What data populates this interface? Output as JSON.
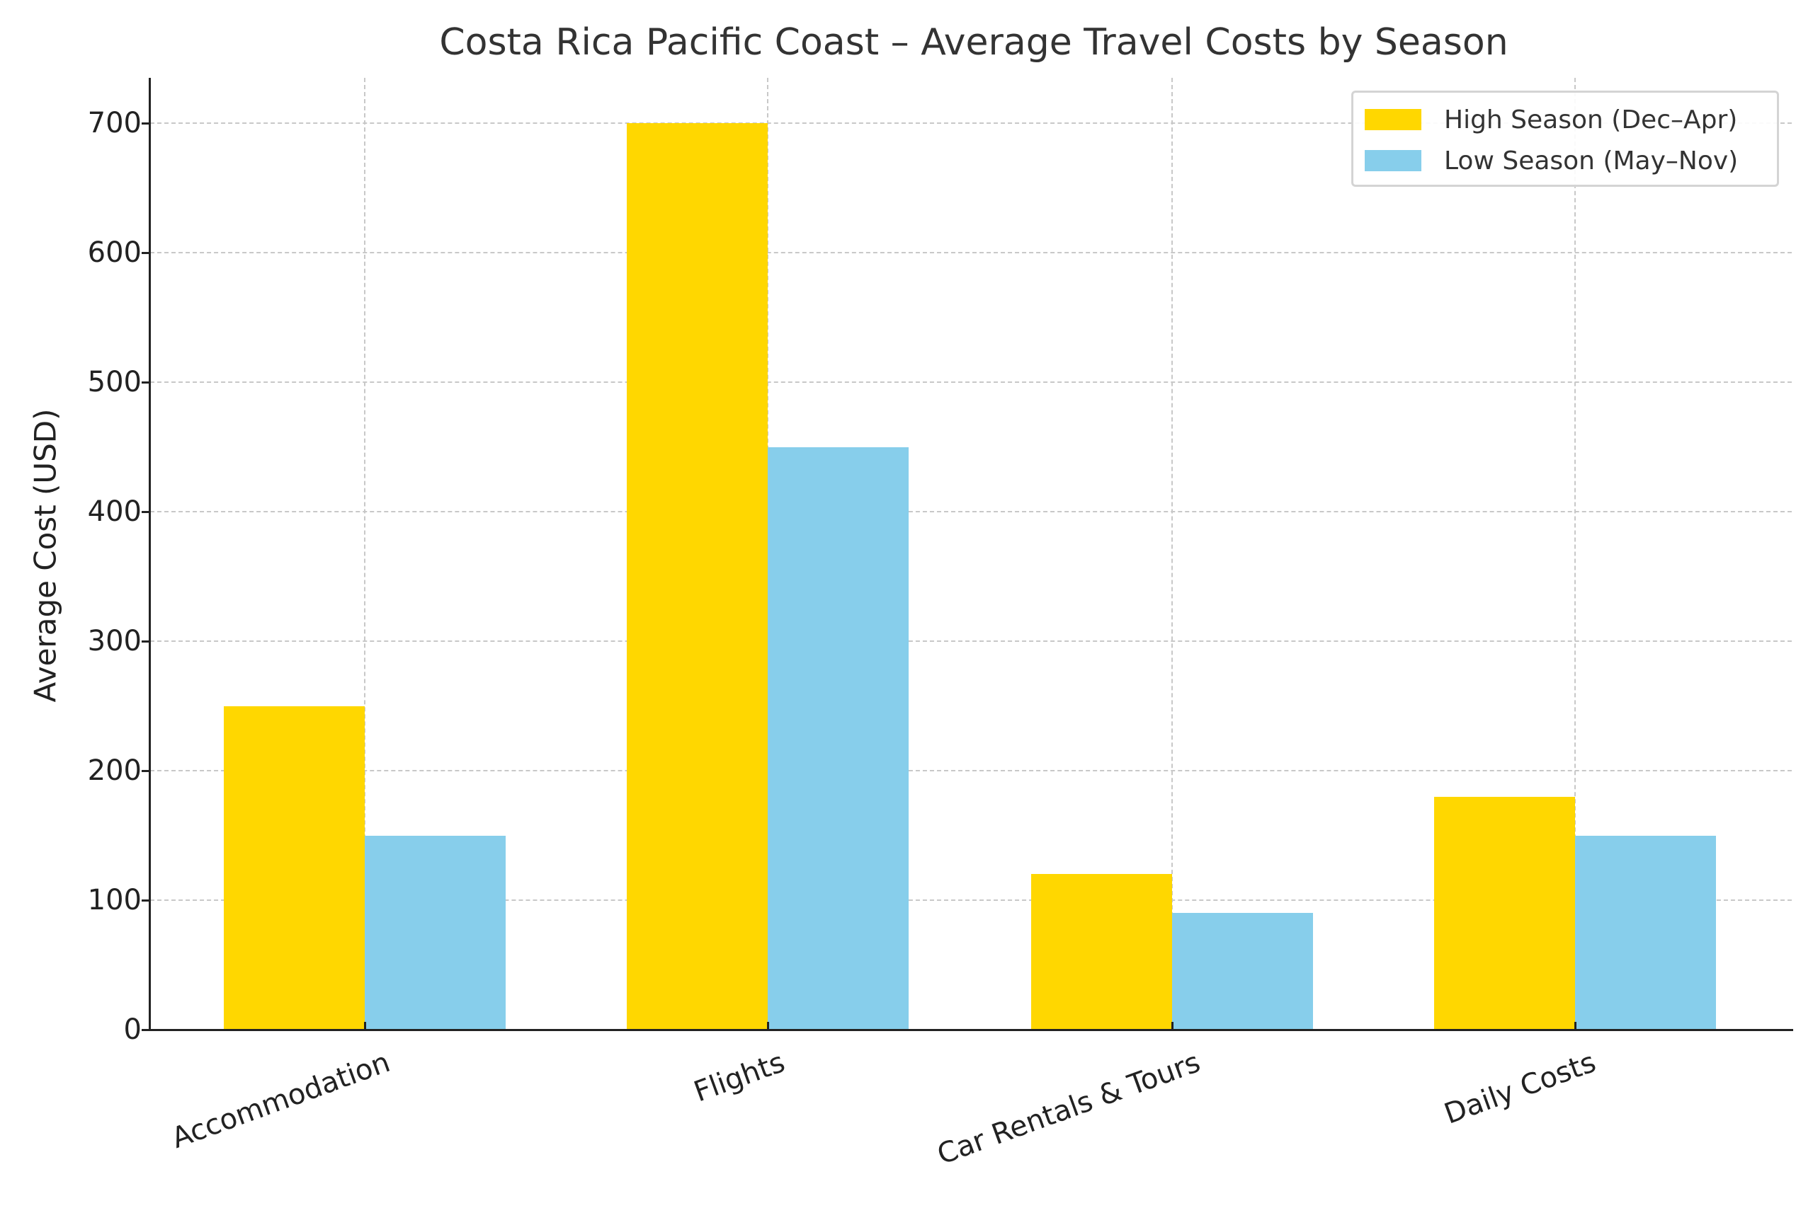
{
  "chart_data": {
    "type": "bar",
    "title": "Costa Rica Pacific Coast – Average Travel Costs by Season",
    "xlabel": "",
    "ylabel": "Average Cost (USD)",
    "categories": [
      "Accommodation",
      "Flights",
      "Car Rentals & Tours",
      "Daily Costs"
    ],
    "series": [
      {
        "name": "High Season (Dec–Apr)",
        "color": "#FFD700",
        "values": [
          250,
          700,
          120,
          180
        ]
      },
      {
        "name": "Low Season (May–Nov)",
        "color": "#87CEEB",
        "values": [
          150,
          450,
          90,
          150
        ]
      }
    ],
    "ylim": [
      0,
      735
    ],
    "yticks": [
      0,
      100,
      200,
      300,
      400,
      500,
      600,
      700
    ],
    "grid": true,
    "legend_position": "upper right"
  },
  "labels": {
    "title": "Costa Rica Pacific Coast – Average Travel Costs by Season",
    "ylabel": "Average Cost (USD)",
    "yticks": [
      "0",
      "100",
      "200",
      "300",
      "400",
      "500",
      "600",
      "700"
    ],
    "categories": [
      "Accommodation",
      "Flights",
      "Car Rentals & Tours",
      "Daily Costs"
    ],
    "legend": [
      "High Season (Dec–Apr)",
      "Low Season (May–Nov)"
    ]
  }
}
